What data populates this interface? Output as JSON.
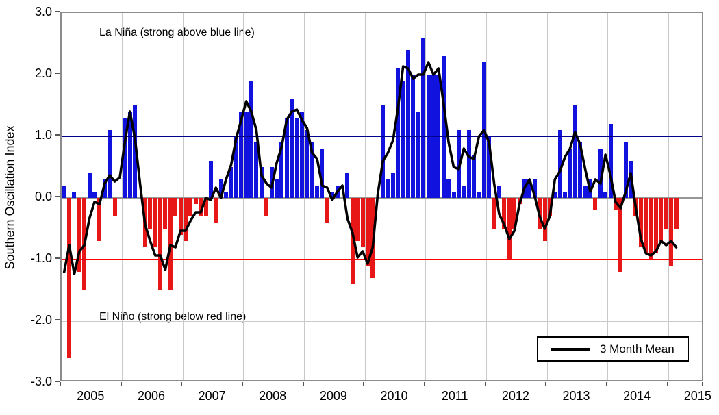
{
  "chart_data": {
    "type": "bar",
    "title": "",
    "xlabel": "",
    "ylabel": "Southern Oscillation Index",
    "ylim": [
      -3.0,
      3.0
    ],
    "grid": true,
    "y_tick_labels": [
      "3.0",
      "2.0",
      "1.0",
      "0.0",
      "-1.0",
      "-2.0",
      "-3.0"
    ],
    "y_tick_values": [
      3,
      2,
      1,
      0,
      -1,
      -2,
      -3
    ],
    "x_tick_years": [
      "2005",
      "2006",
      "2007",
      "2008",
      "2009",
      "2010",
      "2011",
      "2012",
      "2013",
      "2014",
      "2015"
    ],
    "start_month": "2005-01",
    "monthly_soi": [
      0.2,
      -2.6,
      0.1,
      -1.2,
      -1.5,
      0.4,
      0.1,
      -0.7,
      0.3,
      1.1,
      -0.3,
      0.0,
      1.3,
      1.4,
      1.5,
      0.0,
      -0.8,
      -0.5,
      -0.8,
      -1.5,
      -0.5,
      -1.5,
      -0.3,
      -0.6,
      -0.7,
      -0.3,
      -0.1,
      -0.3,
      -0.3,
      0.6,
      -0.4,
      0.3,
      0.1,
      0.5,
      1.0,
      1.4,
      1.4,
      1.9,
      0.9,
      0.5,
      -0.3,
      0.5,
      0.3,
      0.9,
      1.3,
      1.6,
      1.3,
      1.4,
      1.1,
      0.9,
      0.2,
      0.8,
      -0.4,
      0.1,
      0.2,
      0.0,
      0.4,
      -1.4,
      -0.7,
      -0.8,
      -1.1,
      -1.3,
      0.0,
      1.5,
      0.3,
      0.4,
      2.1,
      1.9,
      2.4,
      2.0,
      1.4,
      2.6,
      2.0,
      2.0,
      2.0,
      2.3,
      0.3,
      0.1,
      1.1,
      0.2,
      1.1,
      0.7,
      0.1,
      2.2,
      1.0,
      -0.5,
      0.2,
      -0.5,
      -1.0,
      -0.5,
      -0.1,
      0.3,
      0.3,
      0.3,
      -0.5,
      -0.7,
      -0.3,
      0.1,
      1.1,
      0.1,
      0.8,
      1.5,
      0.9,
      0.2,
      0.3,
      -0.2,
      0.8,
      0.1,
      1.2,
      -0.2,
      -1.2,
      0.9,
      0.6,
      -0.3,
      -0.8,
      -0.9,
      -1.0,
      -0.9,
      -0.7,
      -0.5,
      -1.1,
      -0.5
    ],
    "series": [
      {
        "name": "3 Month Mean",
        "type": "line",
        "derivation": "centered 3-month running mean of monthly_soi",
        "color": "#000000"
      }
    ],
    "reference_lines": [
      {
        "value": 1.0,
        "color": "#00008c",
        "meaning": "La Nina strong threshold"
      },
      {
        "value": -1.0,
        "color": "#fe0000",
        "meaning": "El Nino strong threshold"
      }
    ],
    "annotations": {
      "la_nina": "La Niña (strong above blue line)",
      "el_nino": "El Niño (strong below red line)"
    },
    "legend": {
      "label": "3 Month Mean",
      "position": "bottom-right"
    },
    "colors": {
      "positive_bar": "#1212df",
      "negative_bar": "#e81717",
      "blue_ref_line": "#00008c",
      "red_ref_line": "#fe0000",
      "mean_line": "#000000",
      "gridline": "#c9c9c9",
      "axis_border": "#8c8c8c"
    }
  }
}
